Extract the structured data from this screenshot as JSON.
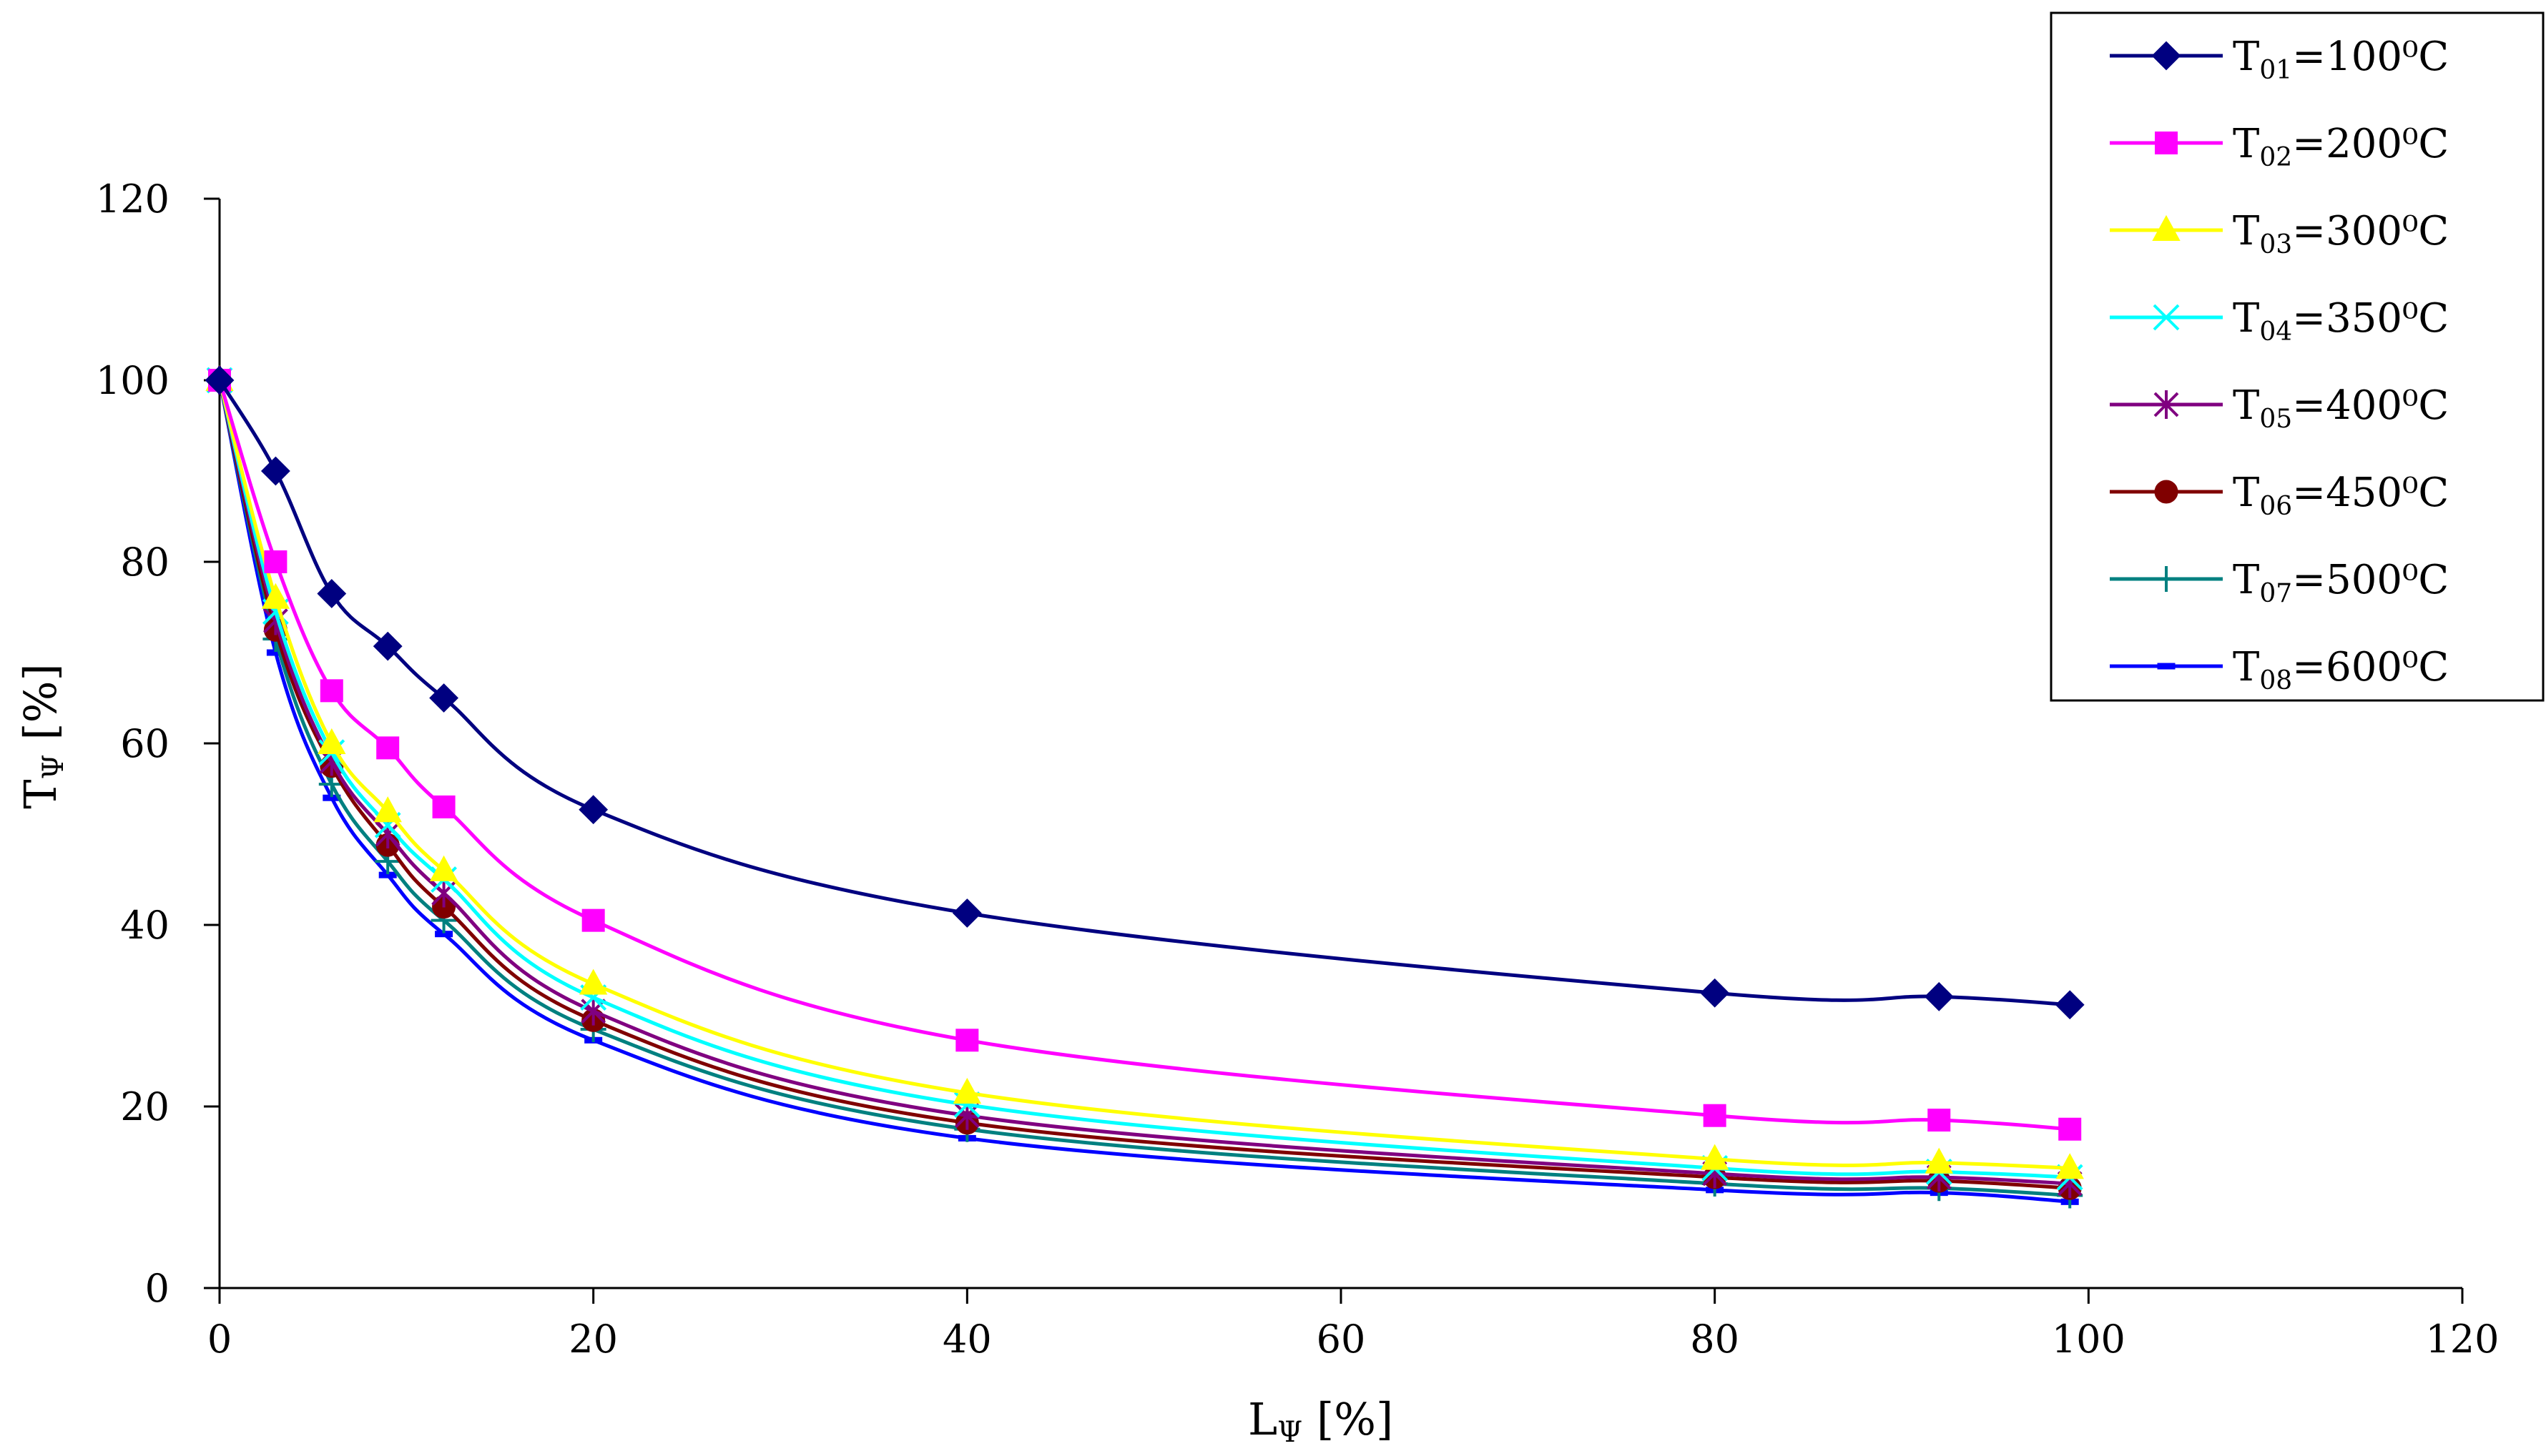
{
  "chart_data": {
    "type": "line",
    "xlabel": {
      "main": "L",
      "sub": "Ψ",
      "rest": " [%]"
    },
    "ylabel": {
      "main": "T",
      "sub": "Ψ",
      "rest": " [%]"
    },
    "xlim": [
      0,
      120
    ],
    "ylim": [
      0,
      120
    ],
    "xticks": [
      0,
      20,
      40,
      60,
      80,
      100,
      120
    ],
    "yticks": [
      0,
      20,
      40,
      60,
      80,
      100,
      120
    ],
    "grid": false,
    "legend_position": "top-right",
    "x": [
      0,
      3,
      6,
      9,
      12,
      20,
      40,
      80,
      92,
      99
    ],
    "series": [
      {
        "name": "T01=100⁰C",
        "label_main": "T",
        "label_sub": "01",
        "label_rest": "=100⁰C",
        "color": "#000080",
        "marker": "diamond",
        "values": [
          100,
          90,
          76.5,
          70.7,
          65,
          52.7,
          41.3,
          32.5,
          32.1,
          31.2
        ]
      },
      {
        "name": "T02=200⁰C",
        "label_main": "T",
        "label_sub": "02",
        "label_rest": "=200⁰C",
        "color": "#FF00FF",
        "marker": "square",
        "values": [
          100,
          80,
          65.8,
          59.5,
          53,
          40.5,
          27.3,
          19,
          18.5,
          17.5
        ]
      },
      {
        "name": "T03=300⁰C",
        "label_main": "T",
        "label_sub": "03",
        "label_rest": "=300⁰C",
        "color": "#FFFF00",
        "marker": "triangle",
        "values": [
          100,
          76,
          60,
          52.5,
          46,
          33.5,
          21.5,
          14.2,
          13.8,
          13.2
        ]
      },
      {
        "name": "T04=350⁰C",
        "label_main": "T",
        "label_sub": "04",
        "label_rest": "=350⁰C",
        "color": "#00FFFF",
        "marker": "x",
        "values": [
          100,
          74.5,
          59,
          51,
          45,
          32,
          20.2,
          13.2,
          12.8,
          12.2
        ]
      },
      {
        "name": "T05=400⁰C",
        "label_main": "T",
        "label_sub": "05",
        "label_rest": "=400⁰C",
        "color": "#800080",
        "marker": "asterisk",
        "values": [
          100,
          73.5,
          58,
          50,
          43.5,
          30.5,
          19,
          12.6,
          12.2,
          11.5
        ]
      },
      {
        "name": "T06=450⁰C",
        "label_main": "T",
        "label_sub": "06",
        "label_rest": "=450⁰C",
        "color": "#800000",
        "marker": "circle",
        "values": [
          100,
          72.5,
          57.5,
          48.8,
          42,
          29.5,
          18.2,
          12.2,
          11.8,
          11
        ]
      },
      {
        "name": "T07=500⁰C",
        "label_main": "T",
        "label_sub": "07",
        "label_rest": "=500⁰C",
        "color": "#008080",
        "marker": "plus",
        "values": [
          100,
          71.5,
          55.5,
          47,
          40.5,
          28.5,
          17.5,
          11.5,
          11,
          10.2
        ]
      },
      {
        "name": "T08=600⁰C",
        "label_main": "T",
        "label_sub": "08",
        "label_rest": "=600⁰C",
        "color": "#0000FF",
        "marker": "dash",
        "values": [
          100,
          70,
          54,
          45.5,
          39,
          27.3,
          16.5,
          10.8,
          10.5,
          9.5
        ]
      }
    ]
  }
}
